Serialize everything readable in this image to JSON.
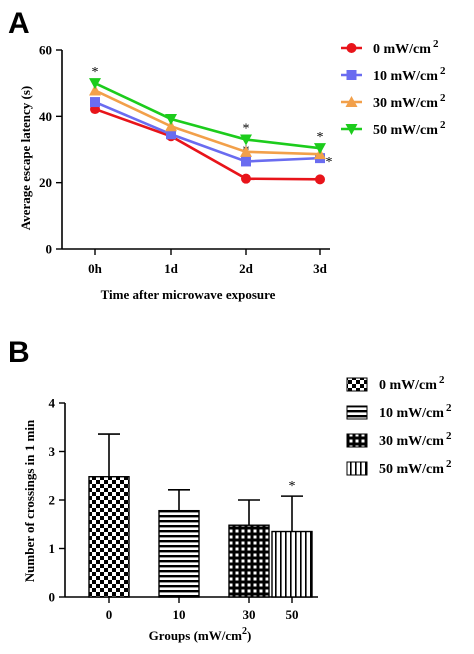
{
  "chart_data": [
    {
      "panel_label": "A",
      "type": "line",
      "categories": [
        "0h",
        "1d",
        "2d",
        "3d"
      ],
      "xlabel": "Time after microwave exposure",
      "ylabel": "Average escape latency (s)",
      "ylim": [
        0,
        60
      ],
      "yticks": [
        0,
        20,
        40,
        60
      ],
      "legend": "top-right",
      "series": [
        {
          "name": "0 mW/cm",
          "sup": "2",
          "color": "#e8141a",
          "marker": "circle",
          "values": [
            42.2,
            34.0,
            21.2,
            21.0
          ],
          "sig": [
            "",
            "",
            "",
            ""
          ]
        },
        {
          "name": "10 mW/cm",
          "sup": "2",
          "color": "#6a6cf0",
          "marker": "square",
          "values": [
            44.3,
            34.6,
            26.4,
            27.4
          ],
          "sig": [
            "",
            "",
            "*",
            "*"
          ]
        },
        {
          "name": "30 mW/cm",
          "sup": "2",
          "color": "#f2a04a",
          "marker": "triangle-up",
          "values": [
            47.8,
            37.0,
            29.3,
            28.6
          ],
          "sig": [
            "",
            "",
            "",
            ""
          ]
        },
        {
          "name": "50 mW/cm",
          "sup": "2",
          "color": "#1ccc1c",
          "marker": "triangle-down",
          "values": [
            50.0,
            39.2,
            33.0,
            30.4
          ],
          "sig": [
            "*",
            "",
            "*",
            "*"
          ]
        }
      ]
    },
    {
      "panel_label": "B",
      "type": "bar",
      "categories": [
        "0",
        "10",
        "30",
        "50"
      ],
      "xlabel": "Groups (mW/cm",
      "xlabel_sup": "2",
      "xlabel_end": ")",
      "ylabel": "Number of crossings in 1 min",
      "ylim": [
        0,
        4
      ],
      "yticks": [
        0,
        1,
        2,
        3,
        4
      ],
      "legend": "top-right",
      "series": [
        {
          "name": "0 mW/cm",
          "sup": "2",
          "pattern": "checker",
          "value": 2.48,
          "error": 0.88,
          "sig": ""
        },
        {
          "name": "10 mW/cm",
          "sup": "2",
          "pattern": "horizontal-lines",
          "value": 1.78,
          "error": 0.43,
          "sig": ""
        },
        {
          "name": "30 mW/cm",
          "sup": "2",
          "pattern": "grid-dots",
          "value": 1.48,
          "error": 0.52,
          "sig": ""
        },
        {
          "name": "50 mW/cm",
          "sup": "2",
          "pattern": "vertical-lines",
          "value": 1.35,
          "error": 0.73,
          "sig": "*"
        }
      ]
    }
  ]
}
